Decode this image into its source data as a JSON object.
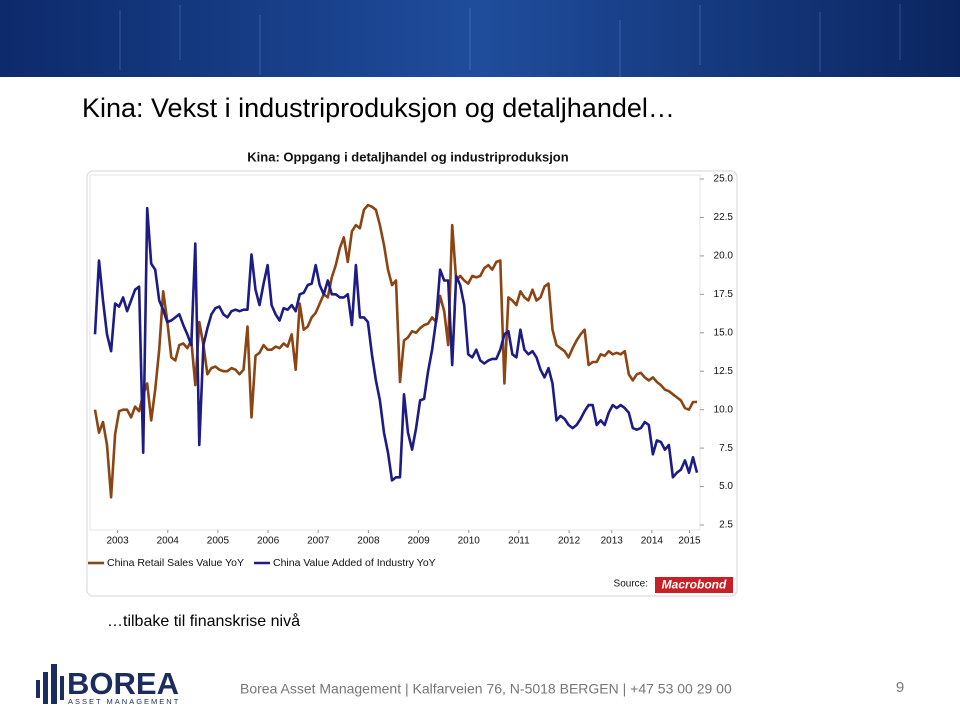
{
  "slide_title": "Kina: Vekst i industriproduksjon og detaljhandel…",
  "caption": "…tilbake til finanskrise nivå",
  "footer": "Borea Asset Management | Kalfarveien 76, N-5018 BERGEN | +47 53 00 29 00",
  "page_number": "9",
  "logo": {
    "name": "BOREA",
    "tagline": "ASSET MANAGEMENT"
  },
  "chart_data": {
    "type": "line",
    "title": "Kina: Oppgang i detaljhandel og industriproduksjon",
    "source_label": "Source:",
    "source": "Macrobond",
    "x": [
      2003,
      2003.08,
      2003.16,
      2003.24,
      2003.32,
      2003.4,
      2003.48,
      2003.56,
      2003.64,
      2003.72,
      2003.8,
      2003.88,
      2003.96,
      2004.04,
      2004.12,
      2004.2,
      2004.28,
      2004.36,
      2004.44,
      2004.52,
      2004.6,
      2004.68,
      2004.76,
      2004.84,
      2004.92,
      2005,
      2005.08,
      2005.16,
      2005.24,
      2005.32,
      2005.4,
      2005.48,
      2005.56,
      2005.64,
      2005.72,
      2005.8,
      2005.88,
      2005.96,
      2006.04,
      2006.12,
      2006.2,
      2006.28,
      2006.36,
      2006.44,
      2006.52,
      2006.6,
      2006.68,
      2006.76,
      2006.84,
      2006.92,
      2007,
      2007.08,
      2007.16,
      2007.24,
      2007.32,
      2007.4,
      2007.48,
      2007.56,
      2007.64,
      2007.72,
      2007.8,
      2007.88,
      2007.96,
      2008.04,
      2008.12,
      2008.2,
      2008.28,
      2008.36,
      2008.44,
      2008.52,
      2008.6,
      2008.68,
      2008.76,
      2008.84,
      2008.92,
      2009,
      2009.08,
      2009.16,
      2009.24,
      2009.32,
      2009.4,
      2009.48,
      2009.56,
      2009.64,
      2009.72,
      2009.8,
      2009.88,
      2009.96,
      2010.04,
      2010.12,
      2010.2,
      2010.28,
      2010.36,
      2010.44,
      2010.52,
      2010.6,
      2010.68,
      2010.76,
      2010.84,
      2010.92,
      2011,
      2011.08,
      2011.16,
      2011.24,
      2011.32,
      2011.4,
      2011.48,
      2011.56,
      2011.64,
      2011.72,
      2011.8,
      2011.88,
      2011.96,
      2012.04,
      2012.12,
      2012.2,
      2012.28,
      2012.36,
      2012.44,
      2012.52,
      2012.6,
      2012.68,
      2012.76,
      2012.84,
      2012.92,
      2013,
      2013.08,
      2013.16,
      2013.24,
      2013.32,
      2013.4,
      2013.48,
      2013.56,
      2013.64,
      2013.72,
      2013.8,
      2013.88,
      2013.96,
      2014.04,
      2014.12,
      2014.2,
      2014.28,
      2014.36,
      2014.44,
      2014.52,
      2014.6,
      2014.68,
      2014.76,
      2014.84,
      2014.92,
      2015
    ],
    "series": [
      {
        "name": "China Retail Sales Value YoY",
        "color": "#8b4513",
        "values": [
          10.0,
          8.5,
          9.2,
          7.7,
          4.3,
          8.4,
          9.9,
          10.0,
          10.0,
          9.5,
          10.2,
          9.9,
          11.0,
          11.7,
          9.3,
          11.3,
          13.9,
          17.7,
          15.8,
          13.4,
          13.2,
          14.2,
          14.3,
          14.0,
          14.5,
          11.6,
          15.7,
          14.2,
          12.3,
          12.7,
          12.8,
          12.6,
          12.5,
          12.5,
          12.7,
          12.6,
          12.3,
          12.6,
          15.4,
          9.5,
          13.5,
          13.7,
          14.2,
          13.9,
          13.9,
          14.1,
          14.0,
          14.3,
          14.1,
          14.9,
          12.6,
          16.9,
          15.2,
          15.4,
          16.0,
          16.3,
          16.9,
          17.5,
          17.3,
          18.6,
          19.4,
          20.5,
          21.2,
          19.6,
          21.6,
          22.0,
          21.8,
          23.0,
          23.3,
          23.2,
          23.0,
          22.0,
          20.7,
          19.1,
          18.1,
          18.4,
          11.8,
          14.5,
          14.7,
          15.1,
          15.0,
          15.3,
          15.5,
          15.6,
          16.0,
          15.7,
          17.4,
          16.4,
          14.2,
          22.0,
          18.4,
          18.7,
          18.4,
          18.2,
          18.7,
          18.6,
          18.7,
          19.2,
          19.4,
          19.1,
          19.6,
          19.7,
          11.7,
          17.3,
          17.1,
          16.8,
          17.7,
          17.3,
          17.1,
          17.8,
          17.1,
          17.3,
          18.0,
          18.2,
          15.2,
          14.2,
          14.0,
          13.8,
          13.4,
          14.0,
          14.5,
          14.9,
          15.2,
          12.9,
          13.1,
          13.1,
          13.6,
          13.5,
          13.8,
          13.6,
          13.7,
          13.6,
          13.8,
          12.3,
          11.9,
          12.3,
          12.4,
          12.1,
          11.9,
          12.1,
          11.8,
          11.6,
          11.3,
          11.2,
          11.0,
          10.8,
          10.6,
          10.1,
          10.0,
          10.5,
          10.5
        ]
      },
      {
        "name": "China Value Added of Industry YoY",
        "color": "#1c1c84",
        "values": [
          14.9,
          19.7,
          17.1,
          14.9,
          13.8,
          16.9,
          16.7,
          17.3,
          16.4,
          17.1,
          17.8,
          18.0,
          7.2,
          23.1,
          19.5,
          19.1,
          17.1,
          16.5,
          15.7,
          15.8,
          16.0,
          16.2,
          15.5,
          14.9,
          14.2,
          20.8,
          7.7,
          14.2,
          15.3,
          16.2,
          16.6,
          16.7,
          16.2,
          16.0,
          16.4,
          16.5,
          16.4,
          16.5,
          16.5,
          20.1,
          17.8,
          16.8,
          18.2,
          19.4,
          16.8,
          16.2,
          15.8,
          16.6,
          16.5,
          16.8,
          16.4,
          17.5,
          17.6,
          18.1,
          18.2,
          19.4,
          18.1,
          17.5,
          18.4,
          17.5,
          17.5,
          17.3,
          17.3,
          17.5,
          15.5,
          19.4,
          16.0,
          16.0,
          15.7,
          13.6,
          11.9,
          10.6,
          8.5,
          7.2,
          5.4,
          5.6,
          5.6,
          11.0,
          8.5,
          7.4,
          8.8,
          10.6,
          10.7,
          12.5,
          13.9,
          15.8,
          19.1,
          18.4,
          18.4,
          12.9,
          18.7,
          18.1,
          16.8,
          13.6,
          13.4,
          13.9,
          13.2,
          13.0,
          13.2,
          13.3,
          13.3,
          13.9,
          14.9,
          15.1,
          13.6,
          13.4,
          15.2,
          13.9,
          13.6,
          13.8,
          13.4,
          12.6,
          12.1,
          12.7,
          11.7,
          9.3,
          9.6,
          9.4,
          9.0,
          8.8,
          9.0,
          9.4,
          9.9,
          10.3,
          10.3,
          9.0,
          9.3,
          9.0,
          9.8,
          10.3,
          10.1,
          10.3,
          10.1,
          9.8,
          8.8,
          8.7,
          8.8,
          9.2,
          9.0,
          7.1,
          8.0,
          7.9,
          7.4,
          7.7,
          5.6,
          5.9,
          6.1,
          6.7,
          5.9,
          6.9,
          5.9
        ]
      }
    ],
    "xlim": [
      2003,
      2015
    ],
    "xticks": [
      {
        "value": 2003.45,
        "label": "2003"
      },
      {
        "value": 2004.45,
        "label": "2004"
      },
      {
        "value": 2005.45,
        "label": "2005"
      },
      {
        "value": 2006.45,
        "label": "2006"
      },
      {
        "value": 2007.45,
        "label": "2007"
      },
      {
        "value": 2008.45,
        "label": "2008"
      },
      {
        "value": 2009.45,
        "label": "2009"
      },
      {
        "value": 2010.45,
        "label": "2010"
      },
      {
        "value": 2011.45,
        "label": "2011"
      },
      {
        "value": 2012.45,
        "label": "2012"
      },
      {
        "value": 2013.3,
        "label": "2013"
      },
      {
        "value": 2014.1,
        "label": "2014"
      },
      {
        "value": 2014.85,
        "label": "2015"
      }
    ],
    "ylim": [
      2.5,
      25.0
    ],
    "yticks": [
      2.5,
      {
        "value": 5,
        "label": "5.0"
      },
      7.5,
      {
        "value": 10,
        "label": "10.0"
      },
      12.5,
      {
        "value": 15,
        "label": "15.0"
      },
      17.5,
      {
        "value": 20,
        "label": "20.0"
      },
      22.5,
      {
        "value": 25,
        "label": "25.0"
      }
    ],
    "grid": false,
    "legend": "bottom-left"
  }
}
